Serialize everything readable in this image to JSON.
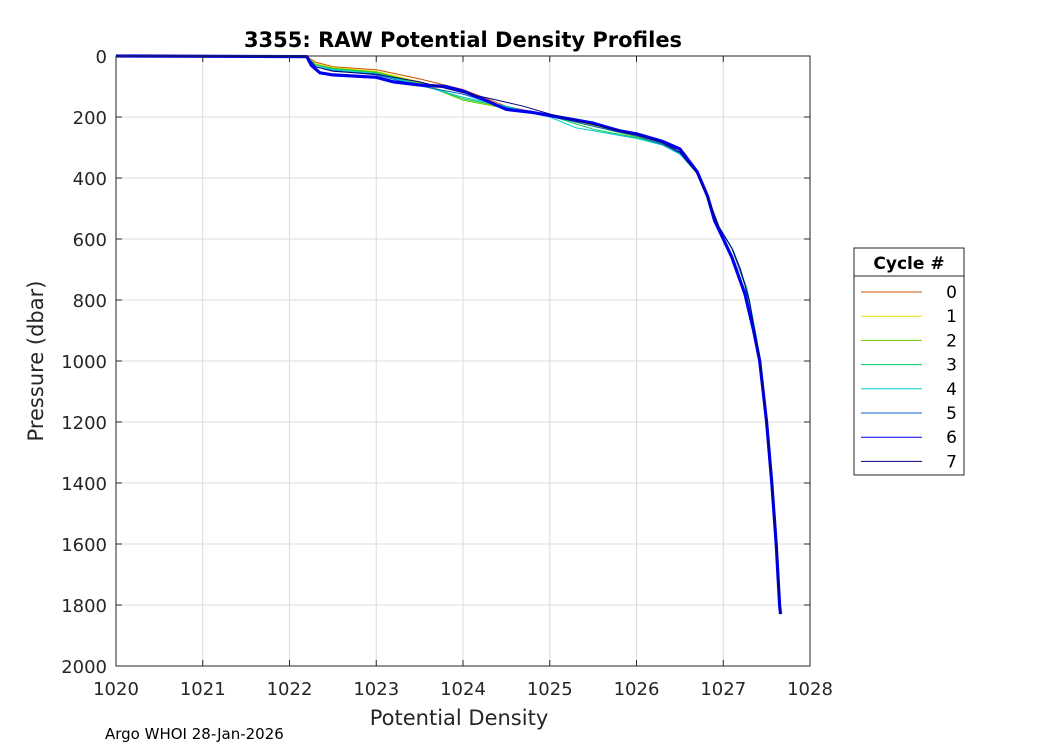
{
  "chart_data": {
    "type": "line",
    "title": "3355: RAW Potential Density Profiles",
    "xlabel": "Potential Density",
    "ylabel": "Pressure (dbar)",
    "xlim": [
      1020,
      1028
    ],
    "ylim": [
      0,
      2000
    ],
    "y_reversed": true,
    "xticks": [
      "1020",
      "1021",
      "1022",
      "1023",
      "1024",
      "1025",
      "1026",
      "1027",
      "1028"
    ],
    "yticks": [
      "0",
      "200",
      "400",
      "600",
      "800",
      "1000",
      "1200",
      "1400",
      "1600",
      "1800",
      "2000"
    ],
    "grid": true,
    "legend": {
      "title": "Cycle #",
      "placement": "right"
    },
    "series": [
      {
        "name": "0",
        "color": "#cc5500",
        "points": [
          [
            1020,
            0
          ],
          [
            1022.2,
            2
          ],
          [
            1022.3,
            20
          ],
          [
            1022.5,
            35
          ],
          [
            1023.0,
            45
          ],
          [
            1023.5,
            75
          ],
          [
            1024.0,
            110
          ],
          [
            1024.5,
            165
          ],
          [
            1025.0,
            195
          ],
          [
            1025.5,
            225
          ],
          [
            1026.0,
            260
          ],
          [
            1026.3,
            290
          ],
          [
            1026.5,
            320
          ],
          [
            1026.7,
            380
          ],
          [
            1026.85,
            480
          ],
          [
            1026.95,
            560
          ],
          [
            1027.1,
            630
          ],
          [
            1027.25,
            750
          ],
          [
            1027.35,
            900
          ],
          [
            1027.42,
            1000
          ],
          [
            1027.5,
            1200
          ],
          [
            1027.56,
            1400
          ],
          [
            1027.61,
            1600
          ],
          [
            1027.65,
            1800
          ],
          [
            1027.66,
            1825
          ]
        ]
      },
      {
        "name": "1",
        "color": "#e6e600",
        "points": [
          [
            1020,
            0
          ],
          [
            1022.2,
            2
          ],
          [
            1022.3,
            25
          ],
          [
            1022.5,
            38
          ],
          [
            1023.0,
            50
          ],
          [
            1023.5,
            85
          ],
          [
            1024.0,
            140
          ],
          [
            1024.5,
            170
          ],
          [
            1025.0,
            195
          ],
          [
            1025.5,
            228
          ],
          [
            1026.0,
            262
          ],
          [
            1026.3,
            285
          ],
          [
            1026.55,
            315
          ],
          [
            1026.72,
            390
          ],
          [
            1026.86,
            490
          ],
          [
            1026.97,
            570
          ],
          [
            1027.12,
            640
          ],
          [
            1027.27,
            760
          ],
          [
            1027.36,
            900
          ],
          [
            1027.43,
            1000
          ],
          [
            1027.5,
            1200
          ],
          [
            1027.56,
            1400
          ],
          [
            1027.61,
            1600
          ],
          [
            1027.65,
            1800
          ],
          [
            1027.66,
            1825
          ]
        ]
      },
      {
        "name": "2",
        "color": "#66cc00",
        "points": [
          [
            1020,
            0
          ],
          [
            1022.2,
            2
          ],
          [
            1022.3,
            28
          ],
          [
            1022.5,
            40
          ],
          [
            1023.0,
            52
          ],
          [
            1023.5,
            88
          ],
          [
            1024.0,
            145
          ],
          [
            1024.5,
            172
          ],
          [
            1025.0,
            198
          ],
          [
            1025.5,
            230
          ],
          [
            1026.0,
            265
          ],
          [
            1026.3,
            288
          ],
          [
            1026.5,
            318
          ],
          [
            1026.7,
            385
          ],
          [
            1026.85,
            485
          ],
          [
            1026.96,
            565
          ],
          [
            1027.11,
            635
          ],
          [
            1027.26,
            755
          ],
          [
            1027.36,
            900
          ],
          [
            1027.42,
            1000
          ],
          [
            1027.5,
            1200
          ],
          [
            1027.56,
            1400
          ],
          [
            1027.61,
            1600
          ],
          [
            1027.65,
            1800
          ],
          [
            1027.66,
            1825
          ]
        ]
      },
      {
        "name": "3",
        "color": "#00cc66",
        "points": [
          [
            1020,
            0
          ],
          [
            1022.2,
            2
          ],
          [
            1022.3,
            30
          ],
          [
            1022.5,
            42
          ],
          [
            1023.0,
            55
          ],
          [
            1023.5,
            92
          ],
          [
            1024.0,
            140
          ],
          [
            1024.5,
            168
          ],
          [
            1025.0,
            196
          ],
          [
            1025.5,
            240
          ],
          [
            1026.0,
            268
          ],
          [
            1026.3,
            290
          ],
          [
            1026.5,
            320
          ],
          [
            1026.7,
            385
          ],
          [
            1026.85,
            485
          ],
          [
            1026.95,
            560
          ],
          [
            1027.1,
            630
          ],
          [
            1027.27,
            760
          ],
          [
            1027.36,
            900
          ],
          [
            1027.43,
            1000
          ],
          [
            1027.5,
            1200
          ],
          [
            1027.56,
            1400
          ],
          [
            1027.61,
            1600
          ],
          [
            1027.65,
            1800
          ],
          [
            1027.66,
            1825
          ]
        ]
      },
      {
        "name": "4",
        "color": "#00cccc",
        "points": [
          [
            1020,
            0
          ],
          [
            1022.2,
            2
          ],
          [
            1022.3,
            30
          ],
          [
            1022.5,
            45
          ],
          [
            1023.0,
            58
          ],
          [
            1023.5,
            95
          ],
          [
            1024.0,
            135
          ],
          [
            1024.5,
            165
          ],
          [
            1025.0,
            200
          ],
          [
            1025.3,
            235
          ],
          [
            1025.5,
            245
          ],
          [
            1026.0,
            270
          ],
          [
            1026.3,
            292
          ],
          [
            1026.5,
            322
          ],
          [
            1026.7,
            385
          ],
          [
            1026.85,
            485
          ],
          [
            1026.95,
            565
          ],
          [
            1027.12,
            640
          ],
          [
            1027.28,
            770
          ],
          [
            1027.37,
            900
          ],
          [
            1027.43,
            1000
          ],
          [
            1027.5,
            1200
          ],
          [
            1027.56,
            1400
          ],
          [
            1027.61,
            1600
          ],
          [
            1027.65,
            1800
          ],
          [
            1027.66,
            1825
          ]
        ]
      },
      {
        "name": "5",
        "color": "#0066cc",
        "points": [
          [
            1020,
            0
          ],
          [
            1022.2,
            2
          ],
          [
            1022.3,
            35
          ],
          [
            1022.5,
            48
          ],
          [
            1023.0,
            62
          ],
          [
            1023.5,
            98
          ],
          [
            1024.0,
            125
          ],
          [
            1024.5,
            170
          ],
          [
            1025.0,
            195
          ],
          [
            1025.5,
            230
          ],
          [
            1026.0,
            262
          ],
          [
            1026.3,
            290
          ],
          [
            1026.5,
            318
          ],
          [
            1026.7,
            385
          ],
          [
            1026.85,
            485
          ],
          [
            1026.95,
            560
          ],
          [
            1027.1,
            630
          ],
          [
            1027.25,
            750
          ],
          [
            1027.35,
            900
          ],
          [
            1027.42,
            1000
          ],
          [
            1027.5,
            1200
          ],
          [
            1027.56,
            1400
          ],
          [
            1027.61,
            1600
          ],
          [
            1027.65,
            1800
          ],
          [
            1027.66,
            1825
          ]
        ]
      },
      {
        "name": "6",
        "color": "#0000ee",
        "points": [
          [
            1020,
            0
          ],
          [
            1022.2,
            2
          ],
          [
            1022.25,
            30
          ],
          [
            1022.35,
            55
          ],
          [
            1022.5,
            62
          ],
          [
            1023.0,
            70
          ],
          [
            1023.2,
            85
          ],
          [
            1023.5,
            95
          ],
          [
            1023.8,
            100
          ],
          [
            1024.0,
            115
          ],
          [
            1024.3,
            150
          ],
          [
            1024.5,
            175
          ],
          [
            1024.8,
            185
          ],
          [
            1025.0,
            195
          ],
          [
            1025.5,
            220
          ],
          [
            1025.8,
            245
          ],
          [
            1026.0,
            255
          ],
          [
            1026.3,
            280
          ],
          [
            1026.5,
            305
          ],
          [
            1026.7,
            380
          ],
          [
            1026.82,
            460
          ],
          [
            1026.9,
            540
          ],
          [
            1027.0,
            600
          ],
          [
            1027.1,
            660
          ],
          [
            1027.25,
            780
          ],
          [
            1027.35,
            900
          ],
          [
            1027.42,
            1000
          ],
          [
            1027.5,
            1200
          ],
          [
            1027.56,
            1400
          ],
          [
            1027.61,
            1600
          ],
          [
            1027.65,
            1800
          ],
          [
            1027.66,
            1830
          ]
        ]
      },
      {
        "name": "7",
        "color": "#000080",
        "points": [
          [
            1020,
            0
          ],
          [
            1022.2,
            2
          ],
          [
            1022.3,
            35
          ],
          [
            1022.5,
            50
          ],
          [
            1023.0,
            60
          ],
          [
            1023.5,
            85
          ],
          [
            1024.0,
            120
          ],
          [
            1024.4,
            145
          ],
          [
            1024.7,
            165
          ],
          [
            1025.0,
            190
          ],
          [
            1025.5,
            225
          ],
          [
            1026.0,
            258
          ],
          [
            1026.3,
            285
          ],
          [
            1026.5,
            315
          ],
          [
            1026.7,
            385
          ],
          [
            1026.85,
            485
          ],
          [
            1026.95,
            560
          ],
          [
            1027.1,
            630
          ],
          [
            1027.2,
            700
          ],
          [
            1027.3,
            800
          ],
          [
            1027.36,
            900
          ],
          [
            1027.42,
            1000
          ],
          [
            1027.5,
            1200
          ],
          [
            1027.56,
            1400
          ],
          [
            1027.61,
            1600
          ],
          [
            1027.65,
            1800
          ],
          [
            1027.66,
            1825
          ]
        ]
      }
    ]
  },
  "footer": "Argo WHOI 28-Jan-2026"
}
